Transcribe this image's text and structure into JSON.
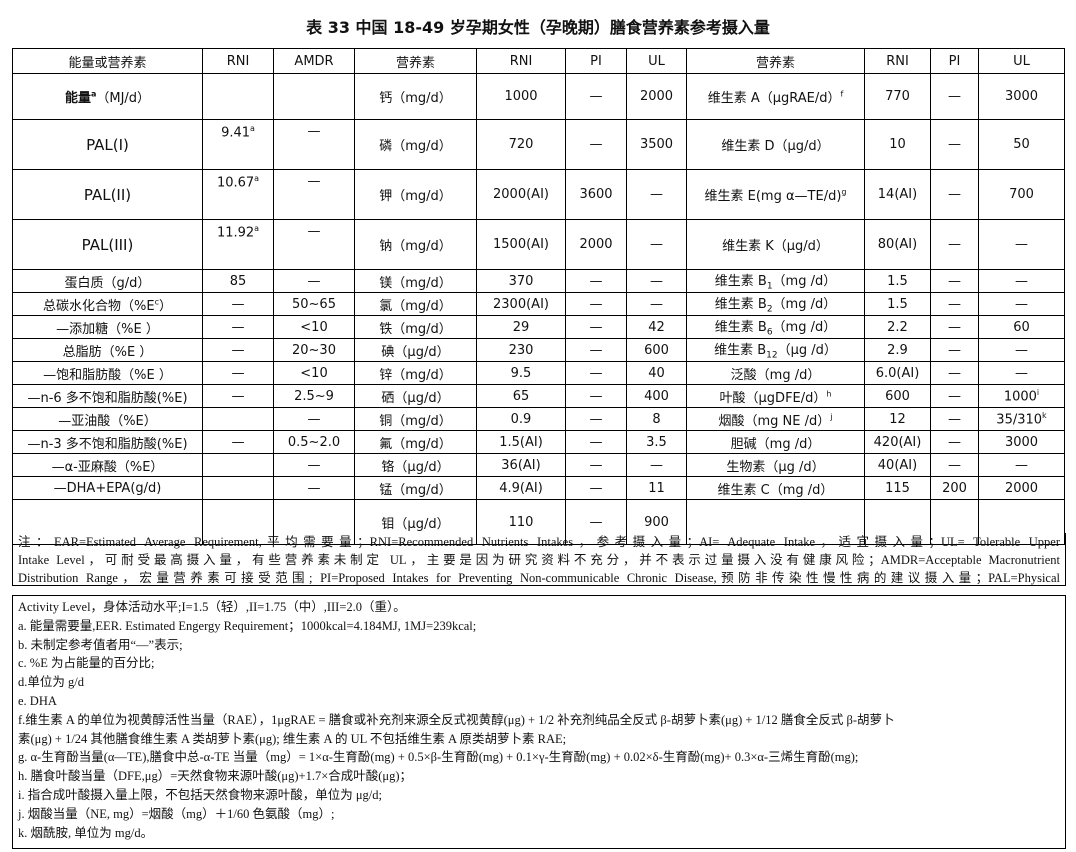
{
  "title": "表 33 中国 18-49 岁孕期女性（孕晚期）膳食营养素参考摄入量",
  "headers": [
    "能量或营养素",
    "RNI",
    "AMDR",
    "营养素",
    "RNI",
    "PI",
    "UL",
    "营养素",
    "RNI",
    "PI",
    "UL"
  ],
  "rows": [
    {
      "a": "能量",
      "a_sup": "a",
      "a_unit": "（MJ/d）",
      "b": "",
      "c": "",
      "d": "钙（mg/d）",
      "e": "1000",
      "f": "—",
      "g": "2000",
      "h": "维生素 A（μgRAE/d）",
      "h_sup": "f",
      "i": "770",
      "j": "—",
      "k": "3000"
    },
    {
      "a": "PAL(I)",
      "b": "9.41",
      "b_sup": "a",
      "c": "—",
      "d": "磷（mg/d）",
      "e": "720",
      "f": "—",
      "g": "3500",
      "h": "维生素 D（μg/d）",
      "i": "10",
      "j": "—",
      "k": "50"
    },
    {
      "a": "PAL(II)",
      "b": "10.67",
      "b_sup": "a",
      "c": "—",
      "d": "钾（mg/d）",
      "e": "2000(AI)",
      "f": "3600",
      "g": "—",
      "h": "维生素 E(mg α—TE/d)",
      "h_sup": "g",
      "i": "14(AI)",
      "j": "—",
      "k": "700"
    },
    {
      "a": "PAL(III)",
      "b": "11.92",
      "b_sup": "a",
      "c": "—",
      "d": "钠（mg/d）",
      "e": "1500(AI)",
      "f": "2000",
      "g": "—",
      "h": "维生素 K（μg/d）",
      "i": "80(AI)",
      "j": "—",
      "k": "—"
    },
    {
      "a": "蛋白质（g/d）",
      "b": "85",
      "c": "—",
      "d": "镁（mg/d）",
      "e": "370",
      "f": "—",
      "g": "—",
      "h": "维生素 B",
      "h_sub": "1",
      "h_unit": "（mg /d）",
      "i": "1.5",
      "j": "—",
      "k": "—"
    },
    {
      "a": "总碳水化合物（%E",
      "a_sup": "c",
      "a_unit": "）",
      "b": "—",
      "c": "50~65",
      "d": "氯（mg/d）",
      "e": "2300(AI)",
      "f": "—",
      "g": "—",
      "h": "维生素 B",
      "h_sub": "2",
      "h_unit": "（mg /d）",
      "i": "1.5",
      "j": "—",
      "k": "—"
    },
    {
      "a": "—添加糖（%E ）",
      "b": "—",
      "c": "<10",
      "d": "铁（mg/d）",
      "e": "29",
      "f": "—",
      "g": "42",
      "h": "维生素 B",
      "h_sub": "6",
      "h_unit": "（mg /d）",
      "i": "2.2",
      "j": "—",
      "k": "60"
    },
    {
      "a": "总脂肪（%E ）",
      "b": "—",
      "c": "20~30",
      "d": "碘（μg/d）",
      "e": "230",
      "f": "—",
      "g": "600",
      "h": "维生素 B",
      "h_sub": "12",
      "h_unit": "（μg /d）",
      "i": "2.9",
      "j": "—",
      "k": "—"
    },
    {
      "a": "—饱和脂肪酸（%E ）",
      "b": "—",
      "c": "<10",
      "d": "锌（mg/d）",
      "e": "9.5",
      "f": "—",
      "g": "40",
      "h": "泛酸（mg /d）",
      "i": "6.0(AI)",
      "j": "—",
      "k": "—"
    },
    {
      "a": "—n-6 多不饱和脂肪酸(%E)",
      "b": "—",
      "c": "2.5~9",
      "d": "硒（μg/d）",
      "e": "65",
      "f": "—",
      "g": "400",
      "h": "叶酸（μgDFE/d）",
      "h_sup": "h",
      "i": "600",
      "j": "—",
      "k": "1000",
      "k_sup": "i"
    },
    {
      "a": "—亚油酸（%E）",
      "b": "",
      "c": "—",
      "d": "铜（mg/d）",
      "e": "0.9",
      "f": "—",
      "g": "8",
      "h": "烟酸（mg NE /d）",
      "h_sup": "j",
      "i": "12",
      "j": "—",
      "k": "35/310",
      "k_sup": "k"
    },
    {
      "a": "—n-3 多不饱和脂肪酸(%E)",
      "b": "—",
      "c": "0.5~2.0",
      "d": "氟（mg/d）",
      "e": "1.5(AI)",
      "f": "—",
      "g": "3.5",
      "h": "胆碱（mg /d）",
      "i": "420(AI)",
      "j": "—",
      "k": "3000"
    },
    {
      "a": "—α-亚麻酸（%E）",
      "b": "",
      "c": "—",
      "d": "铬（μg/d）",
      "e": "36(AI)",
      "f": "—",
      "g": "—",
      "h": "生物素（μg /d）",
      "i": "40(AI)",
      "j": "—",
      "k": "—"
    },
    {
      "a": "—DHA+EPA(g/d)",
      "b": "",
      "c": "—",
      "d": "锰（mg/d）",
      "e": "4.9(AI)",
      "f": "—",
      "g": "11",
      "h": "维生素 C（mg /d）",
      "i": "115",
      "j": "200",
      "k": "2000"
    },
    {
      "a": "",
      "b": "",
      "c": "",
      "d": "钼（μg/d）",
      "e": "110",
      "f": "—",
      "g": "900",
      "h": "",
      "i": "",
      "j": "",
      "k": ""
    }
  ],
  "note_main": [
    "注：EAR=Estimated Average Requirement,平均需要量；RNI=Recommended Nutrients Intakes，参考摄入量；AI= Adequate Intake，适宜摄入量；UL= Tolerable Upper",
    "Intake Level，可耐受最高摄入量，有些营养素未制定 UL，主要是因为研究资料不充分，并不表示过量摄入没有健康风险；AMDR=Acceptable Macronutrient",
    "Distribution Range，宏量营养素可接受范围; PI=Proposed Intakes for Preventing Non-communicable Chronic Disease,预防非传染性慢性病的建议摄入量；PAL=Physical"
  ],
  "footnotes": [
    "Activity Level，身体活动水平;I=1.5（轻）,II=1.75（中）,III=2.0（重）。",
    "a. 能量需要量,EER. Estimated Engergy Requirement；1000kcal=4.184MJ, 1MJ=239kcal;",
    "b. 未制定参考值者用“—”表示;",
    "c. %E 为占能量的百分比;",
    "d.单位为 g/d",
    "e. DHA",
    "f.维生素 A 的单位为视黄醇活性当量（RAE），1μgRAE = 膳食或补充剂来源全反式视黄醇(μg) + 1/2 补充剂纯品全反式 β-胡萝卜素(μg) + 1/12 膳食全反式 β-胡萝卜",
    "素(μg) + 1/24 其他膳食维生素 A 类胡萝卜素(μg);      维生素 A 的 UL 不包括维生素 A 原类胡萝卜素 RAE;",
    "g. α-生育酚当量(α—TE),膳食中总-α-TE 当量（mg）= 1×α-生育酚(mg) + 0.5×β-生育酚(mg) + 0.1×γ-生育酚(mg) + 0.02×δ-生育酚(mg)+ 0.3×α-三烯生育酚(mg);",
    "h. 膳食叶酸当量（DFE,μg）=天然食物来源叶酸(μg)+1.7×合成叶酸(μg)；",
    "i. 指合成叶酸摄入量上限，不包括天然食物来源叶酸，单位为 μg/d;",
    "j. 烟酸当量（NE, mg）=烟酸（mg）＋1/60 色氨酸（mg）;",
    "k. 烟酰胺, 单位为 mg/d。"
  ]
}
